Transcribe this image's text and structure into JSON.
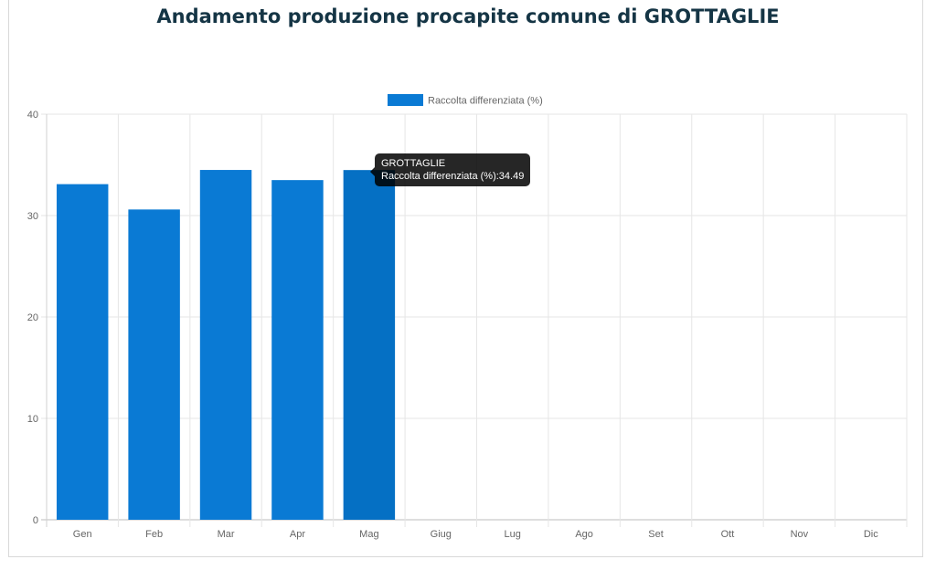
{
  "chart_data": {
    "type": "bar",
    "title": "Andamento produzione procapite comune di GROTTAGLIE",
    "categories": [
      "Gen",
      "Feb",
      "Mar",
      "Apr",
      "Mag",
      "Giug",
      "Lug",
      "Ago",
      "Set",
      "Ott",
      "Nov",
      "Dic"
    ],
    "series": [
      {
        "name": "Raccolta differenziata (%)",
        "values": [
          33.1,
          30.6,
          34.5,
          33.5,
          34.49,
          null,
          null,
          null,
          null,
          null,
          null,
          null
        ],
        "color": "#0a7ad4"
      }
    ],
    "ylim": [
      0,
      40
    ],
    "yticks": [
      0,
      10,
      20,
      30,
      40
    ],
    "grid": true,
    "legend": "top-center",
    "highlight_color": "#0570c4"
  },
  "tooltip": {
    "title": "GROTTAGLIE",
    "text": "Raccolta differenziata (%):34.49"
  }
}
